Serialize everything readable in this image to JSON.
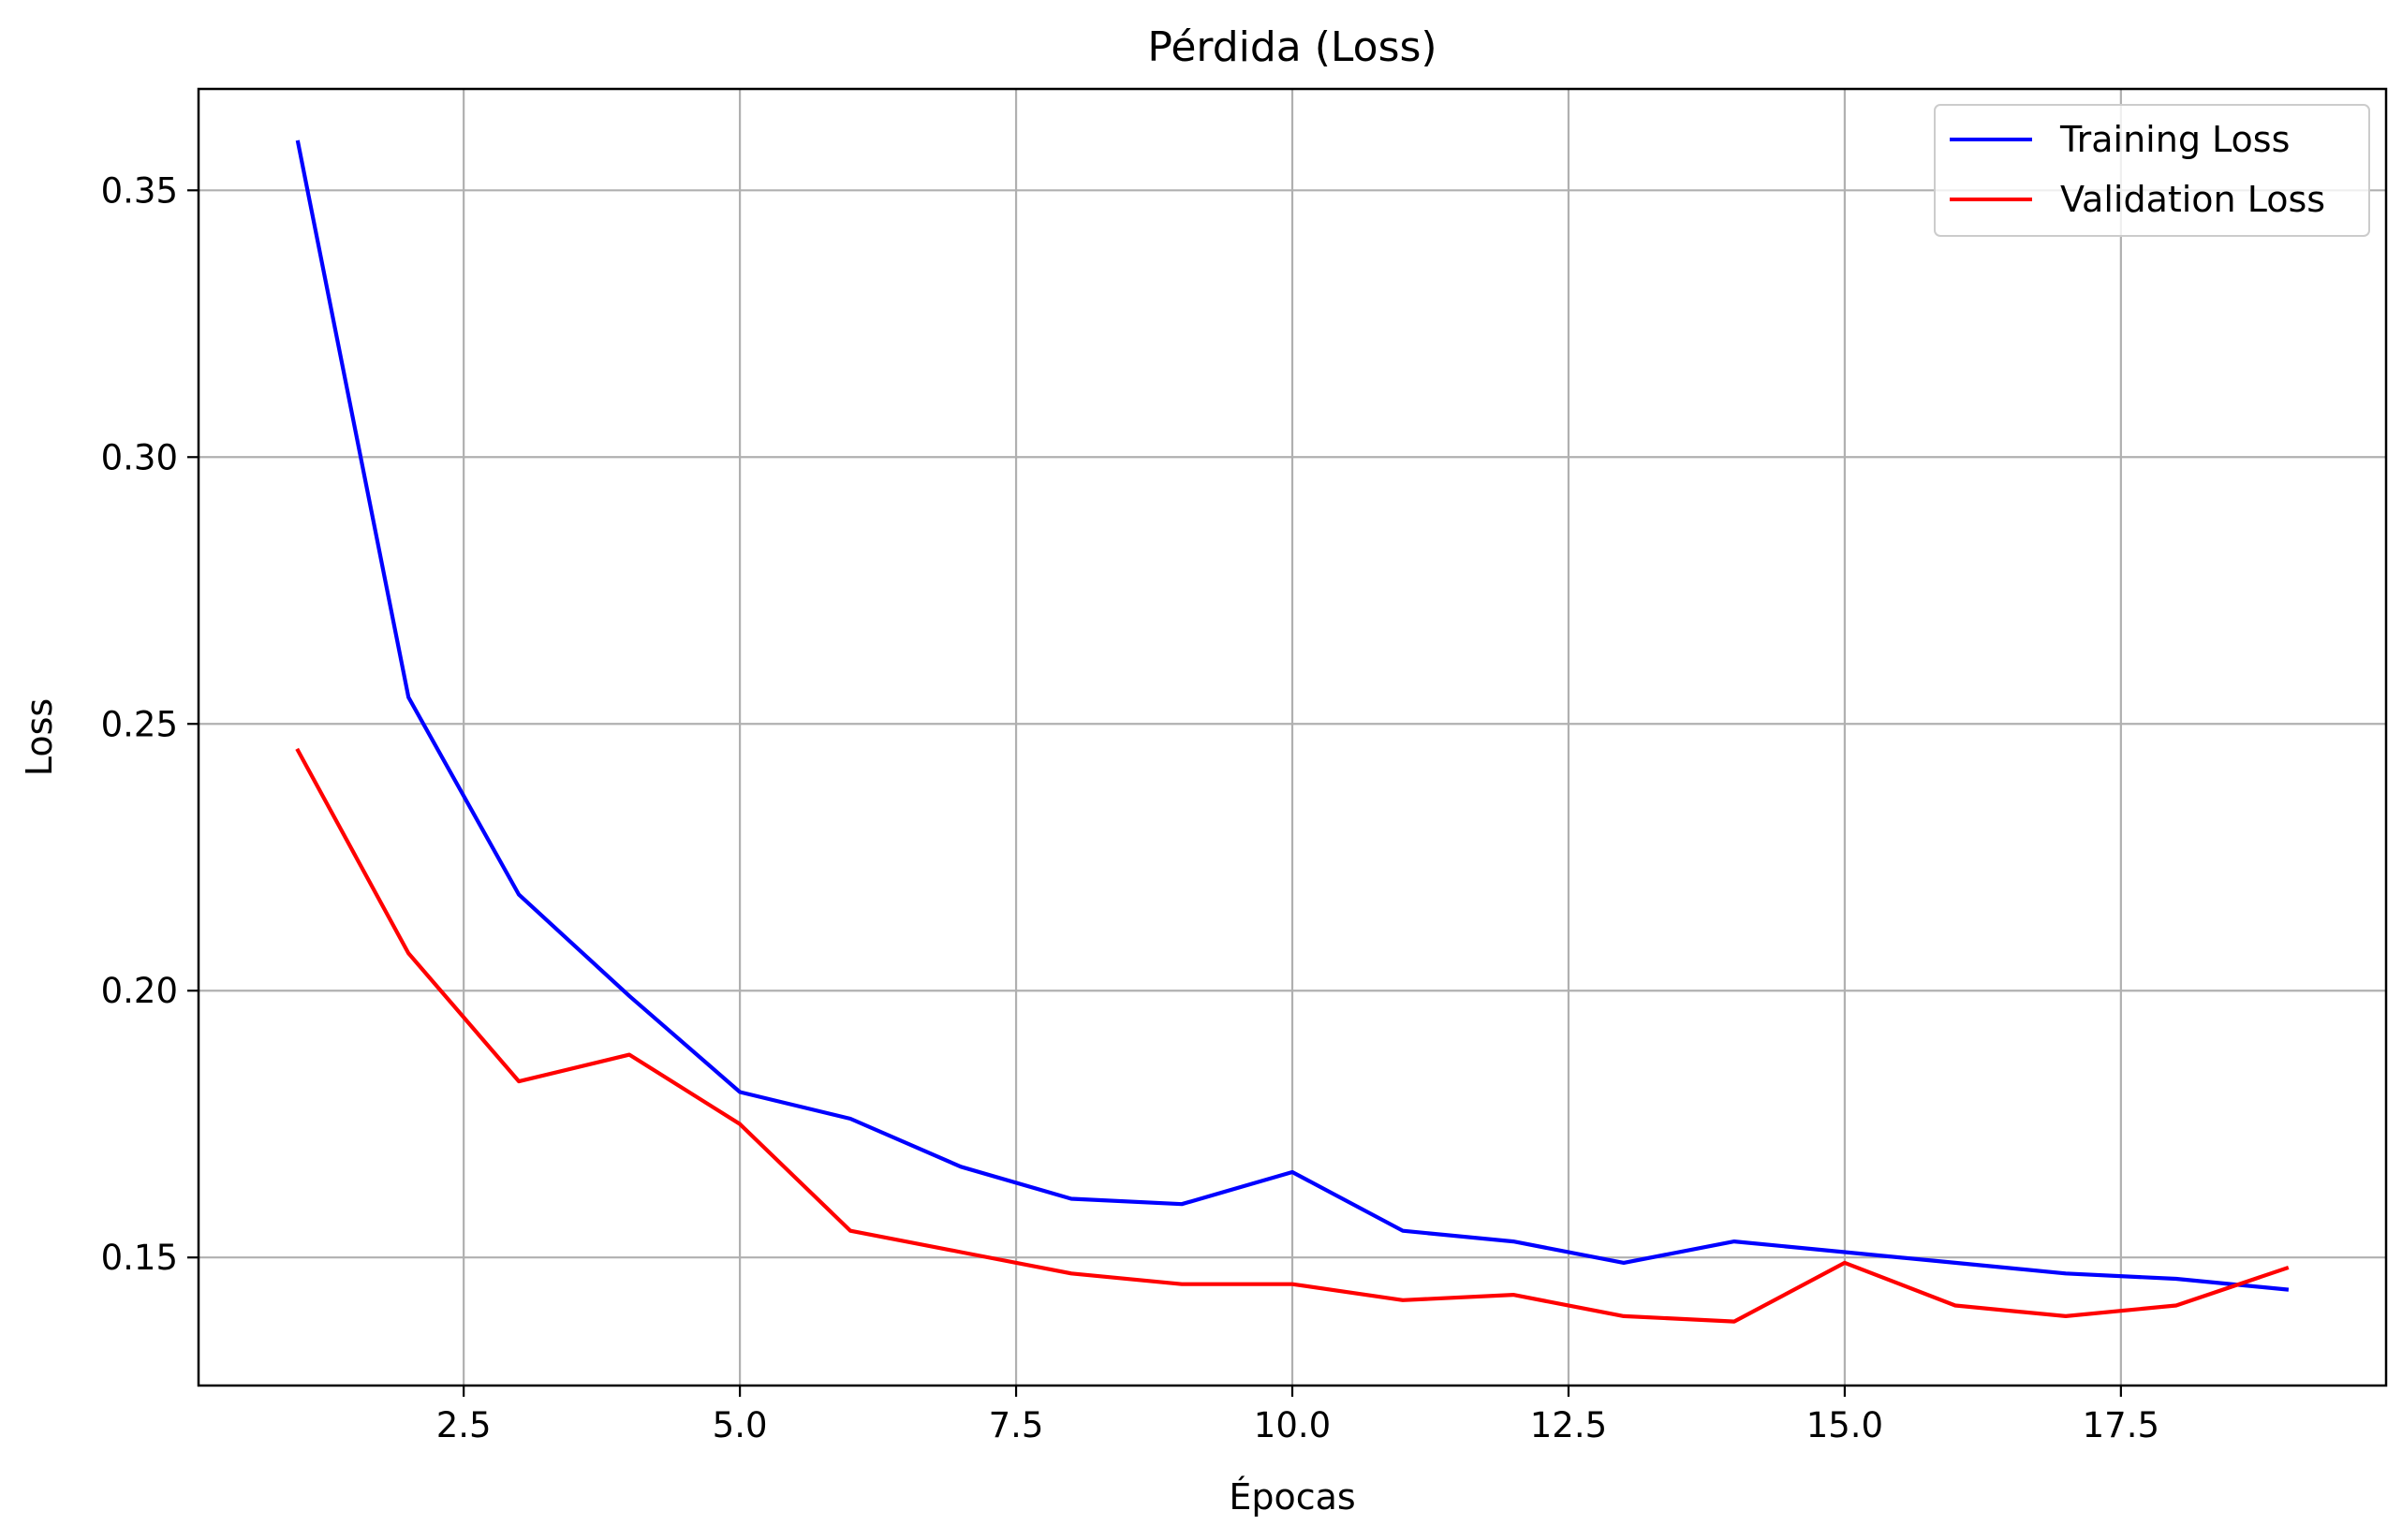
{
  "chart_data": {
    "type": "line",
    "title": "Pérdida (Loss)",
    "xlabel": "Épocas",
    "ylabel": "Loss",
    "xlim": [
      0.1,
      19.9
    ],
    "ylim": [
      0.126,
      0.369
    ],
    "xticks": [
      2.5,
      5.0,
      7.5,
      10.0,
      12.5,
      15.0,
      17.5
    ],
    "xtick_labels": [
      "2.5",
      "5.0",
      "7.5",
      "10.0",
      "12.5",
      "15.0",
      "17.5"
    ],
    "yticks": [
      0.15,
      0.2,
      0.25,
      0.3,
      0.35
    ],
    "ytick_labels": [
      "0.15",
      "0.20",
      "0.25",
      "0.30",
      "0.35"
    ],
    "grid": true,
    "legend_position": "top-right",
    "x": [
      1,
      2,
      3,
      4,
      5,
      6,
      7,
      8,
      9,
      10,
      11,
      12,
      13,
      14,
      15,
      16,
      17,
      18,
      19
    ],
    "series": [
      {
        "name": "Training Loss",
        "color": "#0000ff",
        "values": [
          0.359,
          0.255,
          0.218,
          0.199,
          0.181,
          0.176,
          0.167,
          0.161,
          0.16,
          0.166,
          0.155,
          0.153,
          0.149,
          0.153,
          0.151,
          0.149,
          0.147,
          0.146,
          0.144
        ]
      },
      {
        "name": "Validation Loss",
        "color": "#ff0000",
        "values": [
          0.245,
          0.207,
          0.183,
          0.188,
          0.175,
          0.155,
          0.151,
          0.147,
          0.145,
          0.145,
          0.142,
          0.143,
          0.139,
          0.138,
          0.149,
          0.141,
          0.139,
          0.141,
          0.148
        ]
      }
    ]
  }
}
